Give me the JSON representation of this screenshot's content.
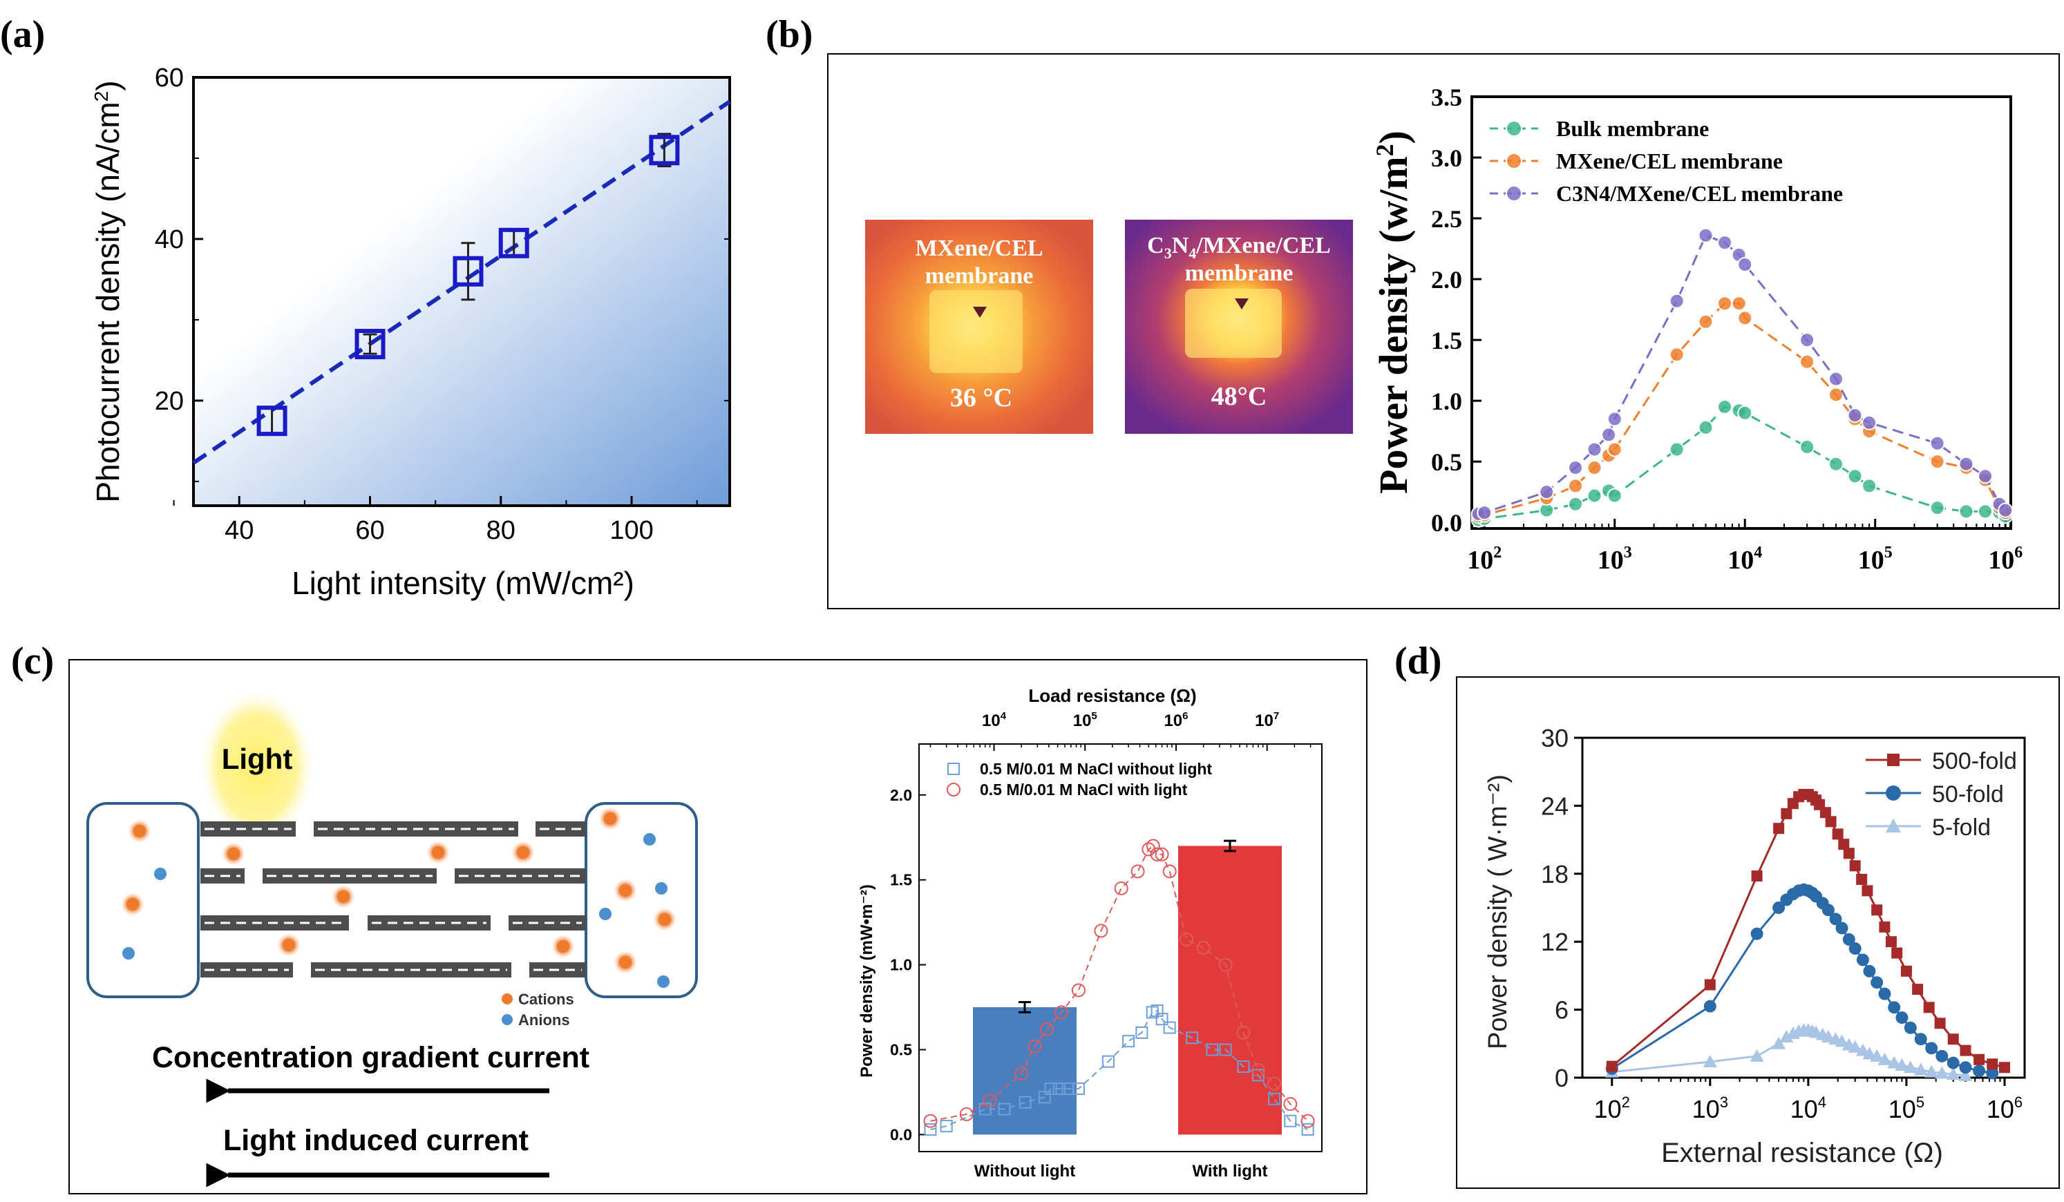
{
  "panels": {
    "a": {
      "label": "(a)"
    },
    "b": {
      "label": "(b)"
    },
    "c": {
      "label": "(c)"
    },
    "d": {
      "label": "(d)"
    }
  },
  "thermal": {
    "left": {
      "line1": "MXene/CEL",
      "line2": "membrane",
      "temp": "36 °C"
    },
    "right": {
      "line1_pre": "C",
      "line1_sub": "3",
      "line1_mid": "N",
      "line1_sub2": "4",
      "line1_post": "/MXene/CEL",
      "line2": "membrane",
      "temp": "48°C"
    },
    "colors": {
      "cool": "#7a2a8a",
      "warm": "#e8602a",
      "hot": "#fff27a"
    }
  },
  "schematic": {
    "light_label": "Light",
    "legend": {
      "cations": "Cations",
      "anions": "Anions"
    },
    "arrow1": "Concentration gradient current",
    "arrow2": "Light induced current",
    "colors": {
      "cation": "#ee7a2c",
      "anion": "#4a90d0",
      "light": "#fff06a",
      "channel": "#4d4d4d",
      "reservoir": "#2e5f8a"
    }
  },
  "chart_data": [
    {
      "id": "a",
      "type": "scatter",
      "title": "",
      "xlabel": "Light intensity (mW/cm²)",
      "ylabel_main": "Photocurrent density (nA/cm",
      "ylabel_sup": "2",
      "ylabel_end": ")",
      "xlim": [
        33,
        115
      ],
      "ylim": [
        7,
        60
      ],
      "xticks": [
        40,
        60,
        80,
        100
      ],
      "yticks": [
        20,
        40,
        60
      ],
      "points": [
        {
          "x": 45,
          "y": 17.5,
          "err": 1.5
        },
        {
          "x": 60,
          "y": 27,
          "err": 1.2
        },
        {
          "x": 75,
          "y": 36,
          "err": 3.5
        },
        {
          "x": 82,
          "y": 39.5,
          "err": 1.5
        },
        {
          "x": 105,
          "y": 51,
          "err": 2.0
        }
      ],
      "fit": {
        "x": [
          33,
          115
        ],
        "y": [
          12.3,
          57
        ]
      },
      "colors": {
        "marker": "#1a1ac8",
        "fit": "#1a2ab8",
        "gradient_start": "#ffffff",
        "gradient_end": "#7aa4dc"
      }
    },
    {
      "id": "b",
      "type": "line",
      "xlabel": "",
      "ylabel": "Power density (w/m²)",
      "xscale": "log",
      "xlim": [
        80,
        1100000
      ],
      "ylim": [
        -0.05,
        3.5
      ],
      "xtick_labels": [
        "10",
        "10",
        "10",
        "10",
        "10"
      ],
      "xtick_exps": [
        "2",
        "3",
        "4",
        "5",
        "6"
      ],
      "xtick_values": [
        100,
        1000,
        10000,
        100000,
        1000000
      ],
      "yticks": [
        "0.0",
        "0.5",
        "1.0",
        "1.5",
        "2.0",
        "2.5",
        "3.0",
        "3.5"
      ],
      "legend_position": "top-left",
      "series": [
        {
          "name": "Bulk membrane",
          "color": "#3cb68a",
          "x": [
            90,
            100,
            300,
            500,
            700,
            900,
            1000,
            3000,
            5000,
            7000,
            9000,
            10000,
            30000,
            50000,
            70000,
            90000,
            300000,
            500000,
            700000,
            900000,
            1000000
          ],
          "y": [
            0.02,
            0.03,
            0.1,
            0.15,
            0.22,
            0.26,
            0.22,
            0.6,
            0.78,
            0.95,
            0.92,
            0.9,
            0.62,
            0.48,
            0.38,
            0.3,
            0.12,
            0.09,
            0.09,
            0.08,
            0.05
          ]
        },
        {
          "name": "MXene/CEL membrane",
          "color": "#f07f2a",
          "x": [
            90,
            100,
            300,
            500,
            700,
            900,
            1000,
            3000,
            5000,
            7000,
            9000,
            10000,
            30000,
            50000,
            70000,
            90000,
            300000,
            500000,
            700000,
            900000,
            1000000
          ],
          "y": [
            0.05,
            0.06,
            0.2,
            0.3,
            0.45,
            0.55,
            0.6,
            1.38,
            1.65,
            1.8,
            1.8,
            1.68,
            1.32,
            1.05,
            0.85,
            0.75,
            0.5,
            0.45,
            0.35,
            0.12,
            0.08
          ]
        },
        {
          "name": "C3N4/MXene/CEL membrane",
          "color": "#7e6cc8",
          "x": [
            90,
            100,
            300,
            500,
            700,
            900,
            1000,
            3000,
            5000,
            7000,
            9000,
            10000,
            30000,
            50000,
            70000,
            90000,
            300000,
            500000,
            700000,
            900000,
            1000000
          ],
          "y": [
            0.07,
            0.08,
            0.25,
            0.45,
            0.6,
            0.72,
            0.85,
            1.82,
            2.36,
            2.3,
            2.2,
            2.12,
            1.5,
            1.18,
            0.88,
            0.82,
            0.65,
            0.48,
            0.38,
            0.15,
            0.1
          ]
        }
      ]
    },
    {
      "id": "c",
      "type": "bar",
      "top_xlabel": "Load resistance (Ω)",
      "ylabel": "Power density (mW•m⁻²)",
      "categories": [
        "Without light",
        "With light"
      ],
      "values": [
        0.75,
        1.7
      ],
      "bar_errors": [
        0.03,
        0.03
      ],
      "ylim": [
        -0.1,
        2.3
      ],
      "yticks": [
        "0.0",
        "0.5",
        "1.0",
        "1.5",
        "2.0"
      ],
      "xscale": "log",
      "xlim": [
        1500,
        40000000
      ],
      "top_tick_values": [
        10000,
        100000,
        1000000,
        10000000
      ],
      "top_tick_exps": [
        "4",
        "5",
        "6",
        "7"
      ],
      "bar_colors": [
        "#4a7fbf",
        "#e23a3a"
      ],
      "series": [
        {
          "name": "0.5 M/0.01 M NaCl without light",
          "color": "#6f9fd8",
          "marker": "square",
          "x": [
            2000,
            3000,
            8000,
            13000,
            22000,
            36000,
            42000,
            52000,
            65000,
            85000,
            180000,
            300000,
            420000,
            550000,
            620000,
            700000,
            850000,
            1500000,
            2500000,
            3500000,
            5500000,
            8000000,
            12000000,
            18000000,
            28000000
          ],
          "y": [
            0.03,
            0.05,
            0.15,
            0.15,
            0.19,
            0.22,
            0.27,
            0.27,
            0.27,
            0.27,
            0.43,
            0.55,
            0.6,
            0.72,
            0.73,
            0.68,
            0.63,
            0.57,
            0.5,
            0.5,
            0.4,
            0.35,
            0.21,
            0.08,
            0.03
          ]
        },
        {
          "name": "0.5 M/0.01 M NaCl with light",
          "color": "#e05a5a",
          "marker": "circle",
          "x": [
            2000,
            5000,
            9000,
            20000,
            28000,
            38000,
            55000,
            85000,
            150000,
            250000,
            380000,
            500000,
            560000,
            620000,
            700000,
            850000,
            1300000,
            2000000,
            3500000,
            5500000,
            8000000,
            12000000,
            18000000,
            28000000
          ],
          "y": [
            0.08,
            0.12,
            0.2,
            0.36,
            0.52,
            0.62,
            0.72,
            0.85,
            1.2,
            1.45,
            1.55,
            1.68,
            1.7,
            1.65,
            1.65,
            1.55,
            1.15,
            1.1,
            1.0,
            0.6,
            0.38,
            0.3,
            0.18,
            0.08
          ]
        }
      ]
    },
    {
      "id": "d",
      "type": "line",
      "xlabel": "External resistance (Ω)",
      "ylabel": "Power density ( W·m⁻²)",
      "xscale": "log",
      "xlim": [
        50,
        1600000
      ],
      "ylim": [
        0,
        30
      ],
      "yticks": [
        "0",
        "6",
        "12",
        "18",
        "24",
        "30"
      ],
      "xtick_values": [
        100,
        1000,
        10000,
        100000,
        1000000
      ],
      "xtick_exps": [
        "2",
        "3",
        "4",
        "5",
        "6"
      ],
      "legend_position": "top-right",
      "series": [
        {
          "name": "500-fold",
          "color": "#a52a2a",
          "marker": "square",
          "x": [
            100,
            1000,
            3000,
            5000,
            6000,
            7000,
            8000,
            9000,
            10000,
            11000,
            12000,
            13000,
            15000,
            17000,
            20000,
            23000,
            26000,
            30000,
            35000,
            40000,
            50000,
            60000,
            70000,
            80000,
            100000,
            130000,
            170000,
            220000,
            300000,
            400000,
            550000,
            750000,
            1000000
          ],
          "y": [
            1.0,
            8.2,
            17.8,
            22.0,
            23.3,
            24.2,
            24.8,
            25.0,
            25.0,
            24.8,
            24.5,
            24.1,
            23.4,
            22.6,
            21.5,
            20.6,
            19.8,
            18.7,
            17.5,
            16.5,
            14.8,
            13.3,
            12.0,
            11.0,
            9.4,
            7.8,
            6.2,
            4.8,
            3.4,
            2.4,
            1.6,
            1.2,
            0.9
          ]
        },
        {
          "name": "50-fold",
          "color": "#2a6aa8",
          "marker": "circle",
          "x": [
            100,
            1000,
            3000,
            5000,
            6000,
            7000,
            8000,
            9000,
            10000,
            11000,
            12000,
            14000,
            16000,
            19000,
            22000,
            26000,
            30000,
            36000,
            42000,
            50000,
            60000,
            75000,
            90000,
            110000,
            140000,
            180000,
            230000,
            300000,
            400000,
            550000,
            750000
          ],
          "y": [
            0.8,
            6.3,
            12.7,
            15.0,
            15.7,
            16.2,
            16.5,
            16.6,
            16.5,
            16.3,
            16.0,
            15.4,
            14.8,
            14.0,
            13.2,
            12.2,
            11.4,
            10.4,
            9.4,
            8.4,
            7.4,
            6.2,
            5.3,
            4.4,
            3.4,
            2.6,
            1.9,
            1.3,
            0.9,
            0.6,
            0.4
          ]
        },
        {
          "name": "5-fold",
          "color": "#aac4e6",
          "marker": "triangle",
          "x": [
            100,
            1000,
            3000,
            5000,
            6000,
            7000,
            8000,
            9000,
            10000,
            11000,
            12000,
            14000,
            16000,
            19000,
            22000,
            26000,
            30000,
            36000,
            42000,
            50000,
            60000,
            75000,
            90000,
            110000,
            140000,
            180000,
            230000,
            300000,
            400000
          ],
          "y": [
            0.5,
            1.4,
            1.9,
            3.0,
            3.6,
            3.9,
            4.1,
            4.2,
            4.2,
            4.1,
            4.0,
            3.8,
            3.6,
            3.4,
            3.2,
            2.9,
            2.7,
            2.4,
            2.1,
            1.9,
            1.6,
            1.3,
            1.1,
            0.9,
            0.7,
            0.5,
            0.4,
            0.3,
            0.2
          ]
        }
      ]
    }
  ]
}
